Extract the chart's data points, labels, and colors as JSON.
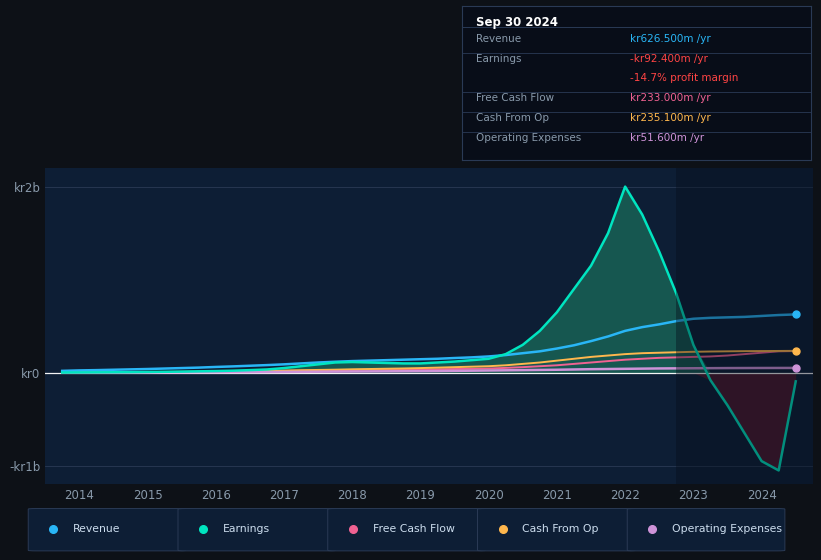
{
  "bg_color": "#0d1117",
  "plot_bg": "#0d1e35",
  "revenue_color": "#29b6f6",
  "earnings_color": "#00e5c0",
  "fcf_color": "#f06292",
  "cashop_color": "#ffb74d",
  "opex_color": "#ce93d8",
  "years": [
    2013.75,
    2014.0,
    2014.25,
    2014.5,
    2014.75,
    2015.0,
    2015.25,
    2015.5,
    2015.75,
    2016.0,
    2016.25,
    2016.5,
    2016.75,
    2017.0,
    2017.25,
    2017.5,
    2017.75,
    2018.0,
    2018.25,
    2018.5,
    2018.75,
    2019.0,
    2019.25,
    2019.5,
    2019.75,
    2020.0,
    2020.25,
    2020.5,
    2020.75,
    2021.0,
    2021.25,
    2021.5,
    2021.75,
    2022.0,
    2022.25,
    2022.5,
    2022.75,
    2023.0,
    2023.25,
    2023.5,
    2023.75,
    2024.0,
    2024.25,
    2024.5
  ],
  "revenue_m": [
    20,
    25,
    28,
    32,
    36,
    40,
    45,
    50,
    55,
    62,
    68,
    75,
    82,
    90,
    100,
    110,
    118,
    125,
    130,
    135,
    140,
    145,
    150,
    158,
    165,
    175,
    190,
    210,
    230,
    260,
    295,
    340,
    390,
    450,
    490,
    520,
    555,
    580,
    590,
    595,
    600,
    610,
    620,
    626.5
  ],
  "earnings_m": [
    2,
    3,
    4,
    5,
    6,
    8,
    10,
    12,
    15,
    18,
    22,
    28,
    35,
    50,
    70,
    90,
    110,
    115,
    110,
    105,
    100,
    100,
    110,
    120,
    135,
    150,
    200,
    300,
    450,
    650,
    900,
    1150,
    1500,
    2000,
    1700,
    1300,
    850,
    300,
    -80,
    -350,
    -650,
    -950,
    -1050,
    -92.4
  ],
  "fcf_m": [
    3,
    4,
    5,
    5,
    6,
    7,
    8,
    9,
    10,
    11,
    13,
    15,
    17,
    20,
    22,
    25,
    28,
    30,
    32,
    33,
    34,
    35,
    37,
    40,
    42,
    45,
    52,
    60,
    70,
    80,
    95,
    110,
    125,
    140,
    150,
    160,
    165,
    170,
    175,
    185,
    200,
    215,
    230,
    233
  ],
  "cashop_m": [
    2,
    3,
    4,
    5,
    6,
    7,
    8,
    9,
    10,
    12,
    14,
    17,
    20,
    23,
    27,
    30,
    33,
    37,
    40,
    43,
    46,
    50,
    55,
    60,
    65,
    70,
    80,
    95,
    110,
    130,
    150,
    170,
    185,
    200,
    210,
    215,
    220,
    225,
    228,
    230,
    232,
    233,
    234,
    235.1
  ],
  "opex_m": [
    2,
    2,
    3,
    3,
    4,
    4,
    5,
    5,
    6,
    6,
    7,
    7,
    8,
    9,
    10,
    11,
    12,
    13,
    14,
    15,
    16,
    17,
    18,
    20,
    22,
    24,
    26,
    28,
    30,
    32,
    35,
    38,
    40,
    42,
    44,
    46,
    47,
    48,
    49,
    50,
    50.5,
    51,
    51.3,
    51.6
  ],
  "ylim_top": 2200000000,
  "ylim_bottom": -1200000000,
  "xlim_left": 2013.5,
  "xlim_right": 2024.75,
  "xtick_years": [
    2014,
    2015,
    2016,
    2017,
    2018,
    2019,
    2020,
    2021,
    2022,
    2023,
    2024
  ],
  "ytick_vals": [
    2000000000,
    0,
    -1000000000
  ],
  "ytick_labels": [
    "kr2b",
    "kr0",
    "-kr1b"
  ],
  "info_box": {
    "title": "Sep 30 2024",
    "rows": [
      {
        "label": "Revenue",
        "value": "kr626.500m /yr",
        "value_color": "#29b6f6"
      },
      {
        "label": "Earnings",
        "value": "-kr92.400m /yr",
        "value_color": "#ff4444"
      },
      {
        "label": "",
        "value": "-14.7% profit margin",
        "value_color": "#ff4444"
      },
      {
        "label": "Free Cash Flow",
        "value": "kr233.000m /yr",
        "value_color": "#f06292"
      },
      {
        "label": "Cash From Op",
        "value": "kr235.100m /yr",
        "value_color": "#ffb74d"
      },
      {
        "label": "Operating Expenses",
        "value": "kr51.600m /yr",
        "value_color": "#ce93d8"
      }
    ]
  },
  "legend_items": [
    {
      "label": "Revenue",
      "color": "#29b6f6"
    },
    {
      "label": "Earnings",
      "color": "#00e5c0"
    },
    {
      "label": "Free Cash Flow",
      "color": "#f06292"
    },
    {
      "label": "Cash From Op",
      "color": "#ffb74d"
    },
    {
      "label": "Operating Expenses",
      "color": "#ce93d8"
    }
  ]
}
